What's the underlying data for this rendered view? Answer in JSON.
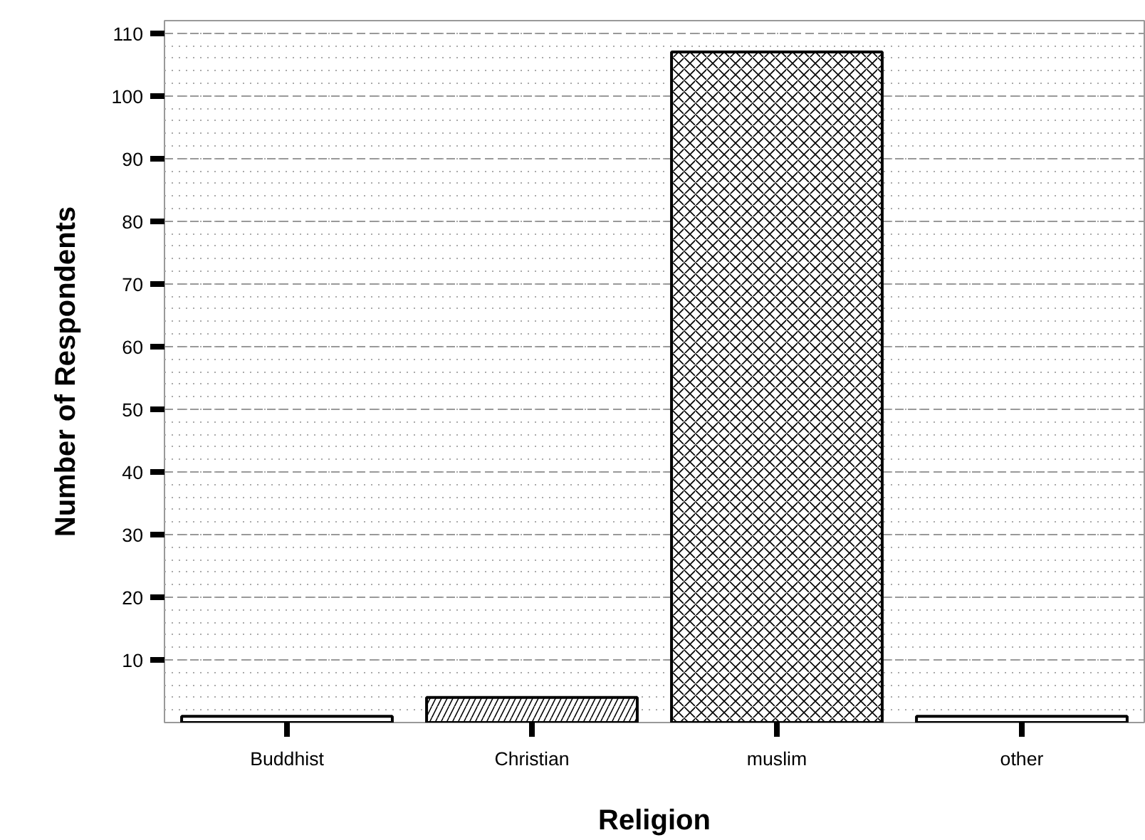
{
  "chart_data": {
    "type": "bar",
    "xlabel": "Religion",
    "ylabel": "Number of Respondents",
    "categories": [
      "Buddhist",
      "Christian",
      "muslim",
      "other"
    ],
    "values": [
      1,
      4,
      107,
      1
    ],
    "color": "#ffffff",
    "ylim": [
      0,
      112
    ],
    "yticks": [
      10,
      20,
      30,
      40,
      50,
      60,
      70,
      80,
      90,
      100,
      110
    ],
    "grid": "y"
  }
}
